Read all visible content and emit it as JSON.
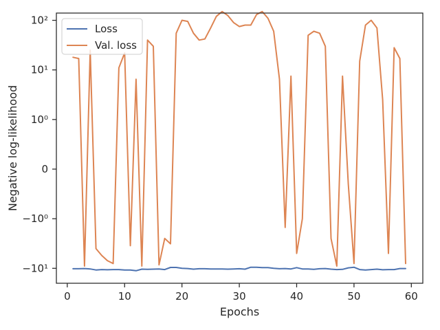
{
  "chart_data": {
    "type": "line",
    "title": "",
    "xlabel": "Epochs",
    "ylabel": "Negative log-likelihood",
    "xlim": [
      -1.9,
      62
    ],
    "ylim": [
      -20,
      140
    ],
    "yscale": "symlog",
    "x_ticks": [
      0,
      10,
      20,
      30,
      40,
      50,
      60
    ],
    "x_tick_labels": [
      "0",
      "10",
      "20",
      "30",
      "40",
      "50",
      "60"
    ],
    "y_ticks": [
      100,
      10,
      1,
      0,
      -1,
      -10
    ],
    "y_tick_labels": [
      "10²",
      "10¹",
      "10⁰",
      "0",
      "−10⁰",
      "−10¹"
    ],
    "legend_position": "top-left",
    "grid": false,
    "series": [
      {
        "name": "Loss",
        "color": "#4c72b0",
        "x": [
          1,
          2,
          3,
          4,
          5,
          6,
          7,
          8,
          9,
          10,
          11,
          12,
          13,
          14,
          15,
          16,
          17,
          18,
          19,
          20,
          21,
          22,
          23,
          24,
          25,
          26,
          27,
          28,
          29,
          30,
          31,
          32,
          33,
          34,
          35,
          36,
          37,
          38,
          39,
          40,
          41,
          42,
          43,
          44,
          45,
          46,
          47,
          48,
          49,
          50,
          51,
          52,
          53,
          54,
          55,
          56,
          57,
          58,
          59
        ],
        "y": [
          -10.2,
          -10.2,
          -10.1,
          -10.3,
          -10.8,
          -10.6,
          -10.7,
          -10.6,
          -10.6,
          -10.8,
          -10.8,
          -11.2,
          -10.4,
          -10.5,
          -10.4,
          -10.3,
          -10.6,
          -9.6,
          -9.6,
          -10.0,
          -10.1,
          -10.4,
          -10.2,
          -10.2,
          -10.3,
          -10.3,
          -10.3,
          -10.4,
          -10.3,
          -10.2,
          -10.4,
          -9.5,
          -9.5,
          -9.7,
          -9.7,
          -10.0,
          -10.2,
          -10.1,
          -10.3,
          -9.7,
          -10.3,
          -10.3,
          -10.5,
          -10.2,
          -10.1,
          -10.4,
          -10.6,
          -10.5,
          -9.8,
          -9.5,
          -10.6,
          -10.8,
          -10.6,
          -10.4,
          -10.7,
          -10.6,
          -10.6,
          -10.1,
          -10.1
        ]
      },
      {
        "name": "Val. loss",
        "color": "#dd8452",
        "x": [
          1,
          2,
          3,
          4,
          5,
          6,
          7,
          8,
          9,
          10,
          11,
          12,
          13,
          14,
          15,
          16,
          17,
          18,
          19,
          20,
          21,
          22,
          23,
          24,
          25,
          26,
          27,
          28,
          29,
          30,
          31,
          32,
          33,
          34,
          35,
          36,
          37,
          38,
          39,
          40,
          41,
          42,
          43,
          44,
          45,
          46,
          47,
          48,
          49,
          50,
          51,
          52,
          53,
          54,
          55,
          56,
          57,
          58,
          59
        ],
        "y": [
          18,
          17,
          -9,
          25,
          -4,
          -5.5,
          -7,
          -8,
          11,
          22,
          -3.5,
          6.5,
          -9,
          40,
          30,
          -8.5,
          -2.5,
          -3.2,
          55,
          100,
          95,
          55,
          40,
          42,
          70,
          120,
          150,
          125,
          90,
          75,
          80,
          80,
          130,
          150,
          110,
          60,
          6.5,
          -1.5,
          7.5,
          -5,
          -1,
          50,
          60,
          55,
          30,
          -2.5,
          -9,
          7.5,
          -0.3,
          -8,
          15,
          80,
          100,
          70,
          2.5,
          -5,
          28,
          17,
          -8
        ]
      }
    ]
  }
}
